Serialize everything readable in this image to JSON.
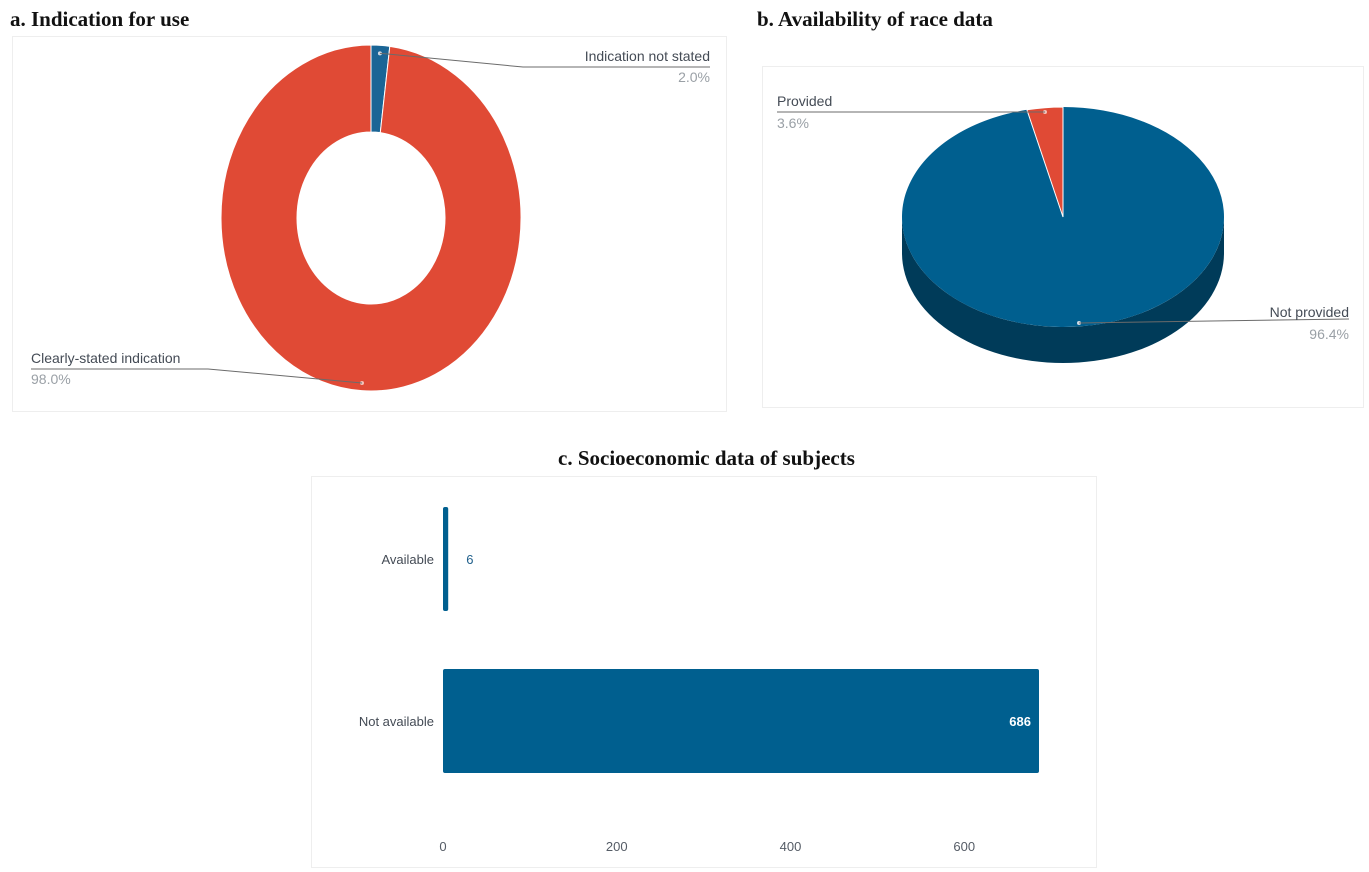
{
  "charts": {
    "a": {
      "title": "a. Indication for use"
    },
    "b": {
      "title": "b. Availability of race data"
    },
    "c": {
      "title": "c. Socioeconomic data of subjects"
    }
  },
  "chart_data": [
    {
      "type": "pie",
      "donut": true,
      "title": "a. Indication for use",
      "slices": [
        {
          "label": "Indication not stated",
          "percent_label": "2.0%",
          "value": 2.0,
          "color": "#1a6596"
        },
        {
          "label": "Clearly-stated indication",
          "percent_label": "98.0%",
          "value": 98.0,
          "color": "#e04a35"
        }
      ]
    },
    {
      "type": "pie",
      "three_d": true,
      "title": "b. Availability of race data",
      "slices": [
        {
          "label": "Provided",
          "percent_label": "3.6%",
          "value": 3.6,
          "color": "#e04a35"
        },
        {
          "label": "Not provided",
          "percent_label": "96.4%",
          "value": 96.4,
          "color": "#005f8f"
        }
      ]
    },
    {
      "type": "bar",
      "orientation": "horizontal",
      "title": "c. Socioeconomic data of subjects",
      "categories": [
        "Available",
        "Not available"
      ],
      "values": [
        6,
        686
      ],
      "value_labels": [
        "6",
        "686"
      ],
      "xlim": [
        0,
        686
      ],
      "xticks": [
        0,
        200,
        400,
        600
      ],
      "xtick_labels": [
        "0",
        "200",
        "400",
        "600"
      ],
      "grid": false,
      "color": "#005f8f"
    }
  ]
}
